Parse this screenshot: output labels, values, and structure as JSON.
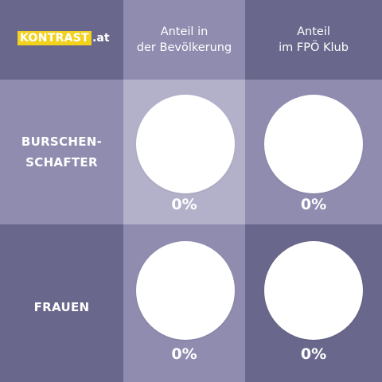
{
  "logo": {
    "brand": "KONTRAST",
    "tld": ".at"
  },
  "columns": [
    {
      "line1": "Anteil in",
      "line2": "der Bevölkerung"
    },
    {
      "line1": "Anteil",
      "line2": "im FPÖ Klub"
    }
  ],
  "rows": [
    {
      "line1": "BURSCHEN-",
      "line2": "SCHAFTER"
    },
    {
      "line1": "FRAUEN",
      "line2": ""
    }
  ],
  "colors": {
    "dark": "#69678b",
    "mid": "#8f8caf",
    "light": "#b3b1ca",
    "accent": "#f2d21c",
    "pie": "#ffffff"
  },
  "chart_data": {
    "type": "pie",
    "unit": "%",
    "pies": [
      {
        "row": "BURSCHEN-SCHAFTER",
        "column": "Anteil in der Bevölkerung",
        "value": 0,
        "label": "0%"
      },
      {
        "row": "BURSCHEN-SCHAFTER",
        "column": "Anteil im FPÖ Klub",
        "value": 0,
        "label": "0%"
      },
      {
        "row": "FRAUEN",
        "column": "Anteil in der Bevölkerung",
        "value": 0,
        "label": "0%"
      },
      {
        "row": "FRAUEN",
        "column": "Anteil im FPÖ Klub",
        "value": 0,
        "label": "0%"
      }
    ]
  }
}
